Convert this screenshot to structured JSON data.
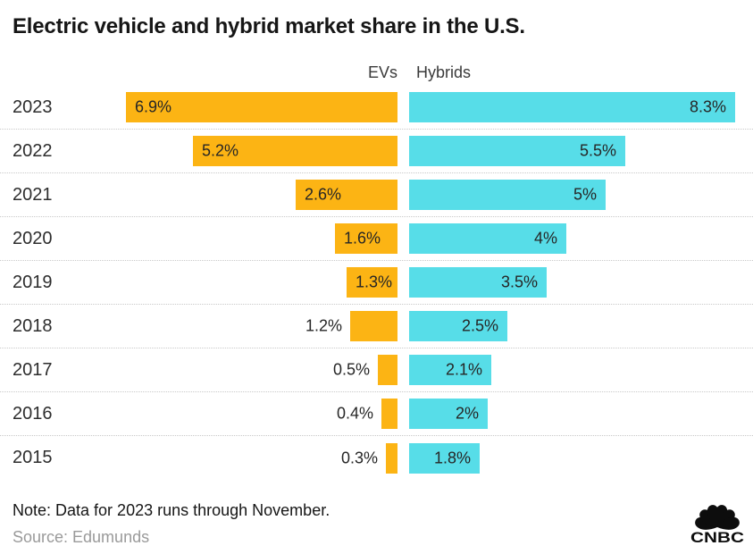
{
  "title": "Electric vehicle and hybrid market share in the U.S.",
  "note": "Note: Data for 2023 runs through November.",
  "source": "Source: Edumunds",
  "logo": {
    "wordmark": "CNBC"
  },
  "chart_data": {
    "type": "bar",
    "orientation": "diverging-horizontal",
    "title": "Electric vehicle and hybrid market share in the U.S.",
    "categories": [
      "2023",
      "2022",
      "2021",
      "2020",
      "2019",
      "2018",
      "2017",
      "2016",
      "2015"
    ],
    "series": [
      {
        "name": "EVs",
        "color": "#FCB414",
        "values": [
          6.9,
          5.2,
          2.6,
          1.6,
          1.3,
          1.2,
          0.5,
          0.4,
          0.3
        ],
        "labels": [
          "6.9%",
          "5.2%",
          "2.6%",
          "1.6%",
          "1.3%",
          "1.2%",
          "0.5%",
          "0.4%",
          "0.3%"
        ]
      },
      {
        "name": "Hybrids",
        "color": "#57DDE8",
        "values": [
          8.3,
          5.5,
          5,
          4,
          3.5,
          2.5,
          2.1,
          2,
          1.8
        ],
        "labels": [
          "8.3%",
          "5.5%",
          "5%",
          "4%",
          "3.5%",
          "2.5%",
          "2.1%",
          "2%",
          "1.8%"
        ]
      }
    ],
    "xlim": [
      0,
      8.3
    ],
    "value_labels": true,
    "grid": false,
    "legend_position": "top",
    "row_separator": "dotted"
  }
}
